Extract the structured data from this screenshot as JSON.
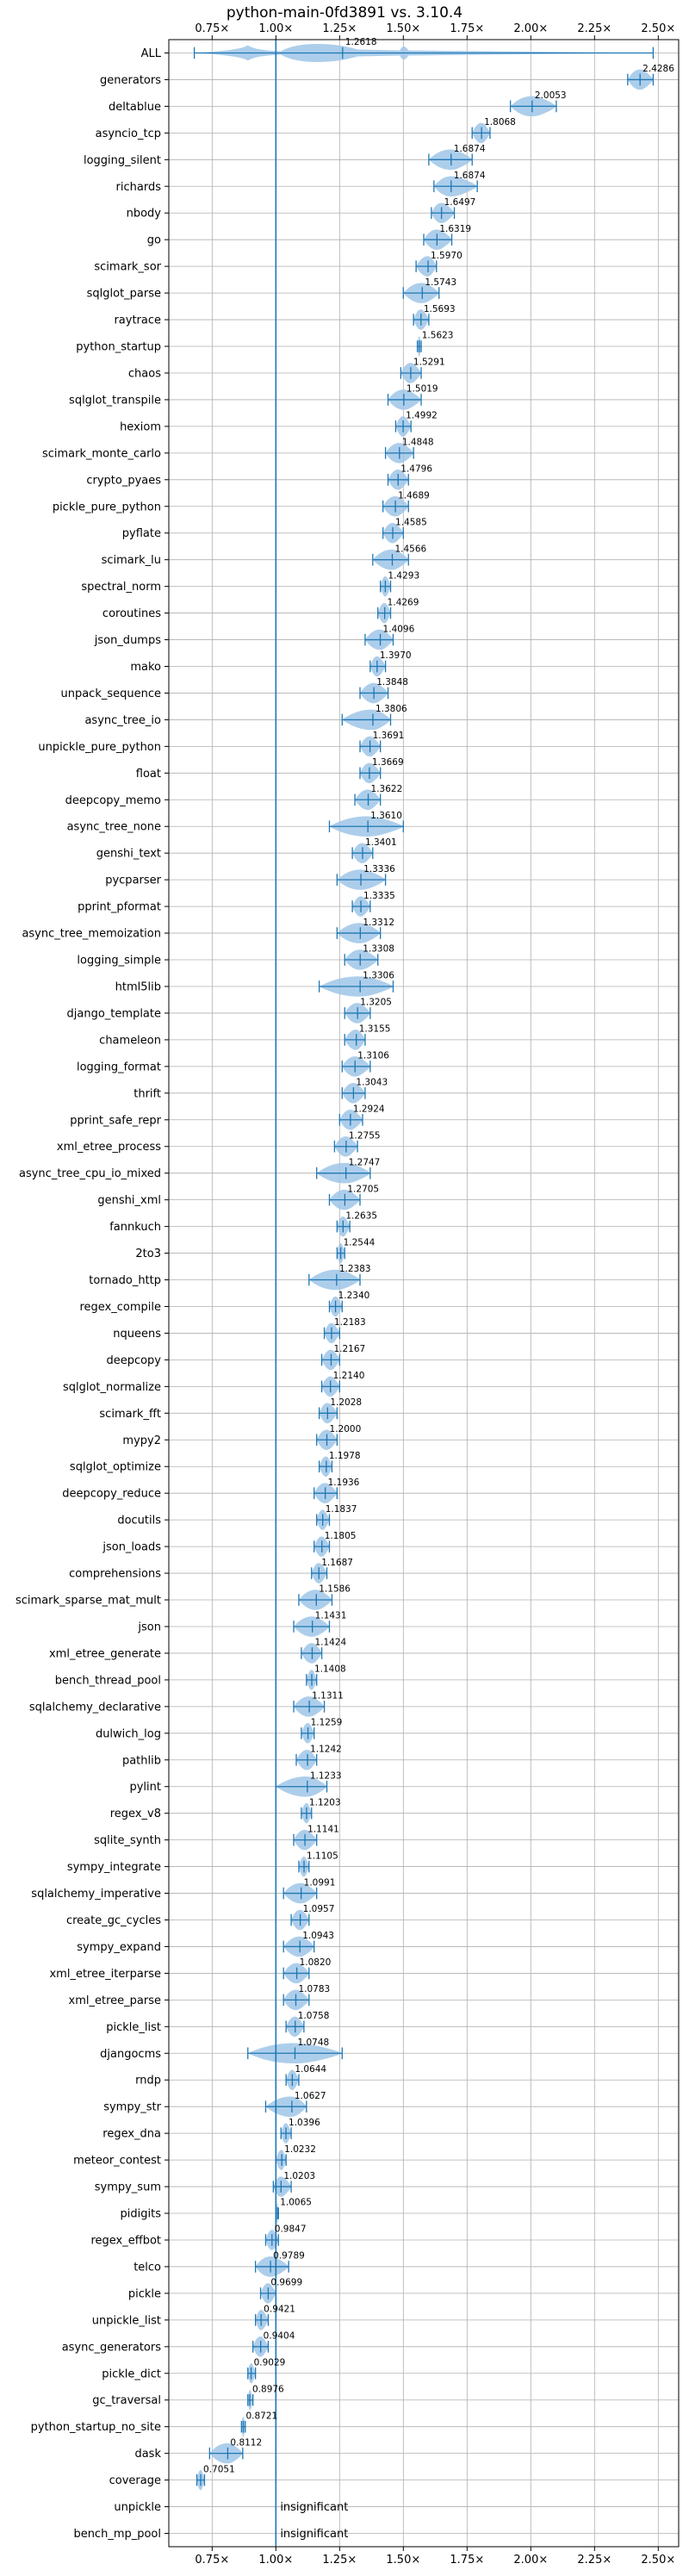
{
  "chart_data": {
    "type": "violin",
    "title": "python-main-0fd3891 vs. 3.10.4",
    "xlim": [
      0.58,
      2.58
    ],
    "xticks": [
      0.75,
      1.0,
      1.25,
      1.5,
      1.75,
      2.0,
      2.25,
      2.5
    ],
    "xtick_labels": [
      "0.75×",
      "1.00×",
      "1.25×",
      "1.50×",
      "1.75×",
      "2.00×",
      "2.25×",
      "2.50×"
    ],
    "reference_line": 1.0,
    "grid": true,
    "colors": {
      "violin": "#9fc5e8",
      "line": "#1f77b4",
      "grid": "#b0b0b0"
    },
    "benchmarks": [
      {
        "name": "ALL",
        "value": 1.2618,
        "label": "1.2618",
        "min": 0.68,
        "max": 2.48
      },
      {
        "name": "generators",
        "value": 2.4286,
        "label": "2.4286",
        "min": 2.38,
        "max": 2.48
      },
      {
        "name": "deltablue",
        "value": 2.0053,
        "label": "2.0053",
        "min": 1.92,
        "max": 2.1
      },
      {
        "name": "asyncio_tcp",
        "value": 1.8068,
        "label": "1.8068",
        "min": 1.77,
        "max": 1.84
      },
      {
        "name": "logging_silent",
        "value": 1.6874,
        "label": "1.6874",
        "min": 1.6,
        "max": 1.77
      },
      {
        "name": "richards",
        "value": 1.6874,
        "label": "1.6874",
        "min": 1.62,
        "max": 1.79
      },
      {
        "name": "nbody",
        "value": 1.6497,
        "label": "1.6497",
        "min": 1.61,
        "max": 1.7
      },
      {
        "name": "go",
        "value": 1.6319,
        "label": "1.6319",
        "min": 1.58,
        "max": 1.69
      },
      {
        "name": "scimark_sor",
        "value": 1.597,
        "label": "1.5970",
        "min": 1.55,
        "max": 1.63
      },
      {
        "name": "sqlglot_parse",
        "value": 1.5743,
        "label": "1.5743",
        "min": 1.5,
        "max": 1.64
      },
      {
        "name": "raytrace",
        "value": 1.5693,
        "label": "1.5693",
        "min": 1.54,
        "max": 1.6
      },
      {
        "name": "python_startup",
        "value": 1.5623,
        "label": "1.5623",
        "min": 1.555,
        "max": 1.57
      },
      {
        "name": "chaos",
        "value": 1.5291,
        "label": "1.5291",
        "min": 1.49,
        "max": 1.57
      },
      {
        "name": "sqlglot_transpile",
        "value": 1.5019,
        "label": "1.5019",
        "min": 1.44,
        "max": 1.57
      },
      {
        "name": "hexiom",
        "value": 1.4992,
        "label": "1.4992",
        "min": 1.47,
        "max": 1.53
      },
      {
        "name": "scimark_monte_carlo",
        "value": 1.4848,
        "label": "1.4848",
        "min": 1.43,
        "max": 1.54
      },
      {
        "name": "crypto_pyaes",
        "value": 1.4796,
        "label": "1.4796",
        "min": 1.44,
        "max": 1.52
      },
      {
        "name": "pickle_pure_python",
        "value": 1.4689,
        "label": "1.4689",
        "min": 1.42,
        "max": 1.52
      },
      {
        "name": "pyflate",
        "value": 1.4585,
        "label": "1.4585",
        "min": 1.42,
        "max": 1.5
      },
      {
        "name": "scimark_lu",
        "value": 1.4566,
        "label": "1.4566",
        "min": 1.38,
        "max": 1.52
      },
      {
        "name": "spectral_norm",
        "value": 1.4293,
        "label": "1.4293",
        "min": 1.41,
        "max": 1.45
      },
      {
        "name": "coroutines",
        "value": 1.4269,
        "label": "1.4269",
        "min": 1.4,
        "max": 1.45
      },
      {
        "name": "json_dumps",
        "value": 1.4096,
        "label": "1.4096",
        "min": 1.35,
        "max": 1.46
      },
      {
        "name": "mako",
        "value": 1.397,
        "label": "1.3970",
        "min": 1.37,
        "max": 1.43
      },
      {
        "name": "unpack_sequence",
        "value": 1.3848,
        "label": "1.3848",
        "min": 1.33,
        "max": 1.44
      },
      {
        "name": "async_tree_io",
        "value": 1.3806,
        "label": "1.3806",
        "min": 1.26,
        "max": 1.45
      },
      {
        "name": "unpickle_pure_python",
        "value": 1.3691,
        "label": "1.3691",
        "min": 1.33,
        "max": 1.41
      },
      {
        "name": "float",
        "value": 1.3669,
        "label": "1.3669",
        "min": 1.33,
        "max": 1.41
      },
      {
        "name": "deepcopy_memo",
        "value": 1.3622,
        "label": "1.3622",
        "min": 1.31,
        "max": 1.41
      },
      {
        "name": "async_tree_none",
        "value": 1.361,
        "label": "1.3610",
        "min": 1.21,
        "max": 1.5
      },
      {
        "name": "genshi_text",
        "value": 1.3401,
        "label": "1.3401",
        "min": 1.3,
        "max": 1.38
      },
      {
        "name": "pycparser",
        "value": 1.3336,
        "label": "1.3336",
        "min": 1.24,
        "max": 1.43
      },
      {
        "name": "pprint_pformat",
        "value": 1.3335,
        "label": "1.3335",
        "min": 1.3,
        "max": 1.37
      },
      {
        "name": "async_tree_memoization",
        "value": 1.3312,
        "label": "1.3312",
        "min": 1.24,
        "max": 1.41
      },
      {
        "name": "logging_simple",
        "value": 1.3308,
        "label": "1.3308",
        "min": 1.27,
        "max": 1.4
      },
      {
        "name": "html5lib",
        "value": 1.3306,
        "label": "1.3306",
        "min": 1.17,
        "max": 1.46
      },
      {
        "name": "django_template",
        "value": 1.3205,
        "label": "1.3205",
        "min": 1.27,
        "max": 1.37
      },
      {
        "name": "chameleon",
        "value": 1.3155,
        "label": "1.3155",
        "min": 1.27,
        "max": 1.35
      },
      {
        "name": "logging_format",
        "value": 1.3106,
        "label": "1.3106",
        "min": 1.26,
        "max": 1.37
      },
      {
        "name": "thrift",
        "value": 1.3043,
        "label": "1.3043",
        "min": 1.26,
        "max": 1.35
      },
      {
        "name": "pprint_safe_repr",
        "value": 1.2924,
        "label": "1.2924",
        "min": 1.25,
        "max": 1.34
      },
      {
        "name": "xml_etree_process",
        "value": 1.2755,
        "label": "1.2755",
        "min": 1.23,
        "max": 1.32
      },
      {
        "name": "async_tree_cpu_io_mixed",
        "value": 1.2747,
        "label": "1.2747",
        "min": 1.16,
        "max": 1.37
      },
      {
        "name": "genshi_xml",
        "value": 1.2705,
        "label": "1.2705",
        "min": 1.21,
        "max": 1.33
      },
      {
        "name": "fannkuch",
        "value": 1.2635,
        "label": "1.2635",
        "min": 1.24,
        "max": 1.29
      },
      {
        "name": "2to3",
        "value": 1.2544,
        "label": "1.2544",
        "min": 1.24,
        "max": 1.27
      },
      {
        "name": "tornado_http",
        "value": 1.2383,
        "label": "1.2383",
        "min": 1.13,
        "max": 1.33
      },
      {
        "name": "regex_compile",
        "value": 1.234,
        "label": "1.2340",
        "min": 1.21,
        "max": 1.26
      },
      {
        "name": "nqueens",
        "value": 1.2183,
        "label": "1.2183",
        "min": 1.19,
        "max": 1.25
      },
      {
        "name": "deepcopy",
        "value": 1.2167,
        "label": "1.2167",
        "min": 1.18,
        "max": 1.25
      },
      {
        "name": "sqlglot_normalize",
        "value": 1.214,
        "label": "1.2140",
        "min": 1.18,
        "max": 1.25
      },
      {
        "name": "scimark_fft",
        "value": 1.2028,
        "label": "1.2028",
        "min": 1.17,
        "max": 1.24
      },
      {
        "name": "mypy2",
        "value": 1.2,
        "label": "1.2000",
        "min": 1.16,
        "max": 1.24
      },
      {
        "name": "sqlglot_optimize",
        "value": 1.1978,
        "label": "1.1978",
        "min": 1.17,
        "max": 1.22
      },
      {
        "name": "deepcopy_reduce",
        "value": 1.1936,
        "label": "1.1936",
        "min": 1.15,
        "max": 1.24
      },
      {
        "name": "docutils",
        "value": 1.1837,
        "label": "1.1837",
        "min": 1.16,
        "max": 1.21
      },
      {
        "name": "json_loads",
        "value": 1.1805,
        "label": "1.1805",
        "min": 1.15,
        "max": 1.21
      },
      {
        "name": "comprehensions",
        "value": 1.1687,
        "label": "1.1687",
        "min": 1.14,
        "max": 1.2
      },
      {
        "name": "scimark_sparse_mat_mult",
        "value": 1.1586,
        "label": "1.1586",
        "min": 1.09,
        "max": 1.22
      },
      {
        "name": "json",
        "value": 1.1431,
        "label": "1.1431",
        "min": 1.07,
        "max": 1.21
      },
      {
        "name": "xml_etree_generate",
        "value": 1.1424,
        "label": "1.1424",
        "min": 1.1,
        "max": 1.18
      },
      {
        "name": "bench_thread_pool",
        "value": 1.1408,
        "label": "1.1408",
        "min": 1.12,
        "max": 1.16
      },
      {
        "name": "sqlalchemy_declarative",
        "value": 1.1311,
        "label": "1.1311",
        "min": 1.07,
        "max": 1.19
      },
      {
        "name": "dulwich_log",
        "value": 1.1259,
        "label": "1.1259",
        "min": 1.1,
        "max": 1.15
      },
      {
        "name": "pathlib",
        "value": 1.1242,
        "label": "1.1242",
        "min": 1.08,
        "max": 1.16
      },
      {
        "name": "pylint",
        "value": 1.1233,
        "label": "1.1233",
        "min": 1.0,
        "max": 1.2
      },
      {
        "name": "regex_v8",
        "value": 1.1203,
        "label": "1.1203",
        "min": 1.1,
        "max": 1.14
      },
      {
        "name": "sqlite_synth",
        "value": 1.1141,
        "label": "1.1141",
        "min": 1.07,
        "max": 1.16
      },
      {
        "name": "sympy_integrate",
        "value": 1.1105,
        "label": "1.1105",
        "min": 1.09,
        "max": 1.13
      },
      {
        "name": "sqlalchemy_imperative",
        "value": 1.0991,
        "label": "1.0991",
        "min": 1.03,
        "max": 1.16
      },
      {
        "name": "create_gc_cycles",
        "value": 1.0957,
        "label": "1.0957",
        "min": 1.06,
        "max": 1.13
      },
      {
        "name": "sympy_expand",
        "value": 1.0943,
        "label": "1.0943",
        "min": 1.03,
        "max": 1.15
      },
      {
        "name": "xml_etree_iterparse",
        "value": 1.082,
        "label": "1.0820",
        "min": 1.03,
        "max": 1.13
      },
      {
        "name": "xml_etree_parse",
        "value": 1.0783,
        "label": "1.0783",
        "min": 1.03,
        "max": 1.13
      },
      {
        "name": "pickle_list",
        "value": 1.0758,
        "label": "1.0758",
        "min": 1.04,
        "max": 1.11
      },
      {
        "name": "djangocms",
        "value": 1.0748,
        "label": "1.0748",
        "min": 0.89,
        "max": 1.26
      },
      {
        "name": "rndp",
        "value": 1.0644,
        "label": "1.0644",
        "min": 1.04,
        "max": 1.09
      },
      {
        "name": "sympy_str",
        "value": 1.0627,
        "label": "1.0627",
        "min": 0.96,
        "max": 1.12
      },
      {
        "name": "regex_dna",
        "value": 1.0396,
        "label": "1.0396",
        "min": 1.02,
        "max": 1.06
      },
      {
        "name": "meteor_contest",
        "value": 1.0232,
        "label": "1.0232",
        "min": 1.0,
        "max": 1.04
      },
      {
        "name": "sympy_sum",
        "value": 1.0203,
        "label": "1.0203",
        "min": 0.99,
        "max": 1.06
      },
      {
        "name": "pidigits",
        "value": 1.0065,
        "label": "1.0065",
        "min": 1.0,
        "max": 1.01
      },
      {
        "name": "regex_effbot",
        "value": 0.9847,
        "label": "0.9847",
        "min": 0.96,
        "max": 1.01
      },
      {
        "name": "telco",
        "value": 0.9789,
        "label": "0.9789",
        "min": 0.92,
        "max": 1.05
      },
      {
        "name": "pickle",
        "value": 0.9699,
        "label": "0.9699",
        "min": 0.94,
        "max": 1.0
      },
      {
        "name": "unpickle_list",
        "value": 0.9421,
        "label": "0.9421",
        "min": 0.92,
        "max": 0.97
      },
      {
        "name": "async_generators",
        "value": 0.9404,
        "label": "0.9404",
        "min": 0.91,
        "max": 0.97
      },
      {
        "name": "pickle_dict",
        "value": 0.9029,
        "label": "0.9029",
        "min": 0.89,
        "max": 0.92
      },
      {
        "name": "gc_traversal",
        "value": 0.8976,
        "label": "0.8976",
        "min": 0.89,
        "max": 0.91
      },
      {
        "name": "python_startup_no_site",
        "value": 0.8721,
        "label": "0.8721",
        "min": 0.865,
        "max": 0.88
      },
      {
        "name": "dask",
        "value": 0.8112,
        "label": "0.8112",
        "min": 0.74,
        "max": 0.87
      },
      {
        "name": "coverage",
        "value": 0.7051,
        "label": "0.7051",
        "min": 0.69,
        "max": 0.72
      },
      {
        "name": "unpickle",
        "value": null,
        "label": "insignificant"
      },
      {
        "name": "bench_mp_pool",
        "value": null,
        "label": "insignificant"
      }
    ]
  }
}
